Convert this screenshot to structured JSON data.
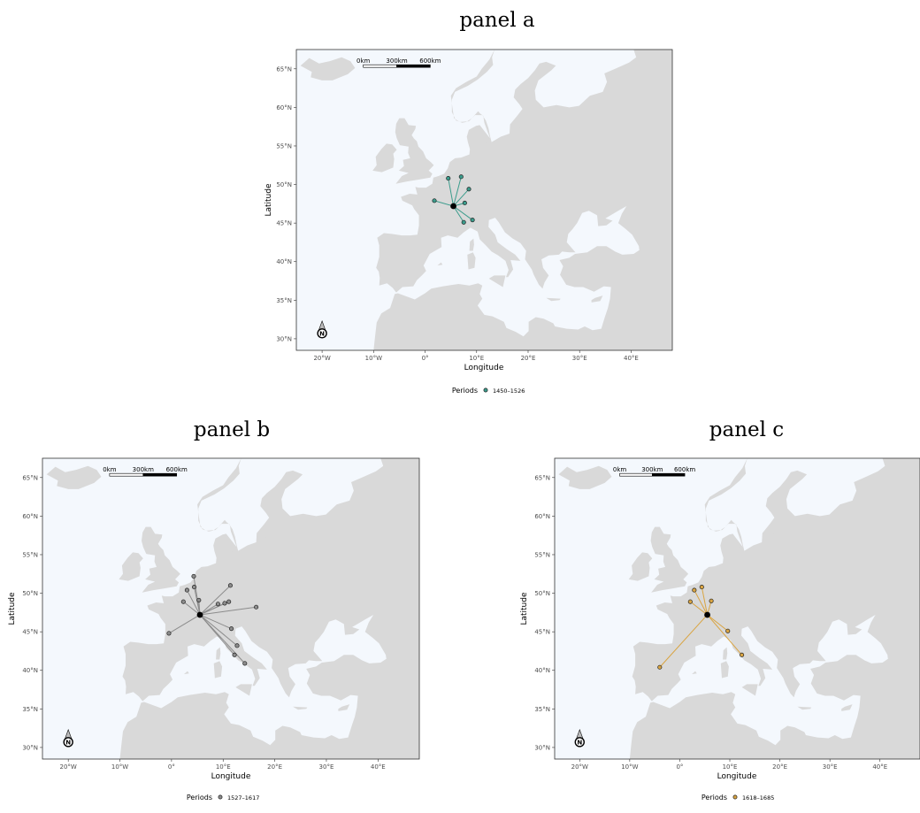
{
  "panels": [
    {
      "id": "a",
      "title": "panel a",
      "period": "1450–1526",
      "color": "#3b9c8c",
      "hub": [
        5.5,
        47.2
      ],
      "points": [
        [
          1.8,
          47.9
        ],
        [
          4.5,
          50.8
        ],
        [
          7.0,
          51.0
        ],
        [
          8.5,
          49.4
        ],
        [
          7.7,
          47.6
        ],
        [
          7.5,
          45.1
        ],
        [
          9.2,
          45.4
        ]
      ]
    },
    {
      "id": "b",
      "title": "panel b",
      "period": "1527–1617",
      "color": "#8c8c8c",
      "hub": [
        5.5,
        47.2
      ],
      "points": [
        [
          -0.5,
          44.8
        ],
        [
          2.3,
          48.9
        ],
        [
          3.0,
          50.4
        ],
        [
          4.3,
          52.2
        ],
        [
          4.4,
          50.8
        ],
        [
          5.3,
          49.1
        ],
        [
          9.0,
          48.6
        ],
        [
          10.3,
          48.7
        ],
        [
          11.1,
          48.9
        ],
        [
          11.4,
          51.0
        ],
        [
          16.4,
          48.2
        ],
        [
          11.6,
          45.4
        ],
        [
          12.7,
          43.2
        ],
        [
          12.2,
          42.0
        ],
        [
          14.2,
          40.9
        ]
      ]
    },
    {
      "id": "c",
      "title": "panel c",
      "period": "1618–1685",
      "color": "#d9a441",
      "hub": [
        5.5,
        47.2
      ],
      "points": [
        [
          -4.0,
          40.4
        ],
        [
          2.1,
          48.9
        ],
        [
          2.9,
          50.4
        ],
        [
          4.4,
          50.8
        ],
        [
          6.3,
          49.0
        ],
        [
          9.6,
          45.1
        ],
        [
          12.4,
          42.0
        ]
      ]
    }
  ],
  "axes": {
    "xlabel": "Longitude",
    "ylabel": "Latitude",
    "xlim": [
      -25,
      48
    ],
    "ylim": [
      28.5,
      67.5
    ],
    "xticks": [
      -20,
      -10,
      0,
      10,
      20,
      30,
      40
    ],
    "xtick_labels": [
      "20°W",
      "10°W",
      "0°",
      "10°E",
      "20°E",
      "30°E",
      "40°E"
    ],
    "yticks": [
      30,
      35,
      40,
      45,
      50,
      55,
      60,
      65
    ],
    "ytick_labels": [
      "30°N",
      "35°N",
      "40°N",
      "45°N",
      "50°N",
      "55°N",
      "60°N",
      "65°N"
    ]
  },
  "scalebar": {
    "labels": [
      "0km",
      "300km",
      "600km"
    ]
  },
  "legend": {
    "title": "Periods"
  },
  "north_arrow": {
    "label": "N"
  },
  "colors": {
    "ocean": "#f4f8fd",
    "land": "#d9d9d9",
    "hub": "#000000"
  }
}
